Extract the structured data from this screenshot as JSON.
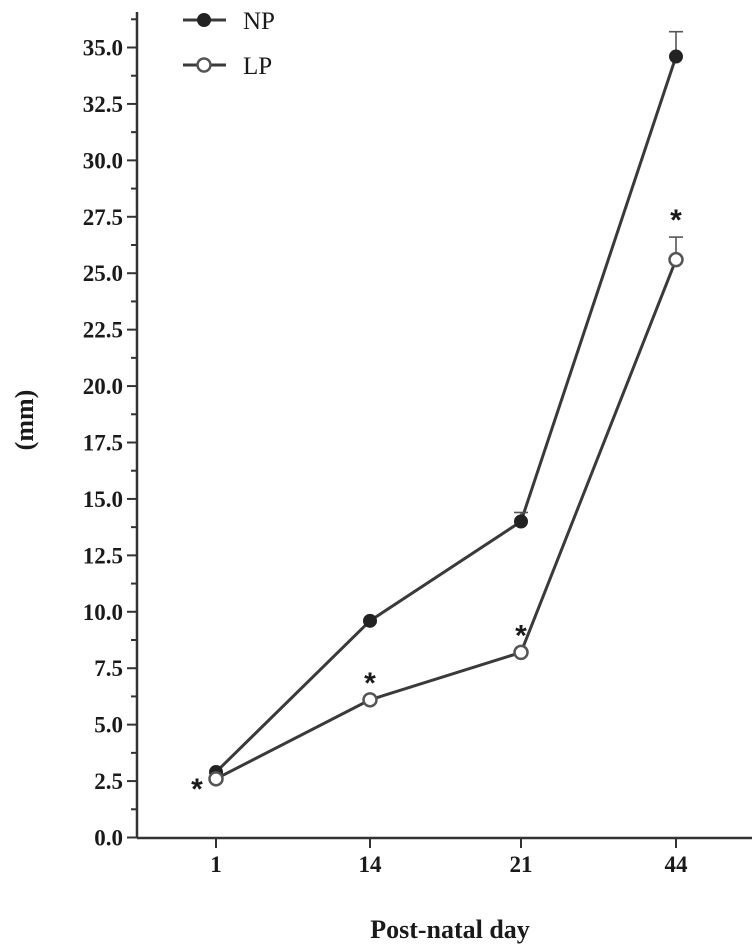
{
  "chart_data": {
    "type": "line",
    "xlabel": "Post-natal day",
    "ylabel": "(mm)",
    "categories": [
      "1",
      "14",
      "21",
      "44"
    ],
    "ylim": [
      0,
      36
    ],
    "yticks": [
      "0.0",
      "2.5",
      "5.0",
      "7.5",
      "10.0",
      "12.5",
      "15.0",
      "17.5",
      "20.0",
      "22.5",
      "25.0",
      "27.5",
      "30.0",
      "32.5",
      "35.0"
    ],
    "ytick_values": [
      0,
      2.5,
      5,
      7.5,
      10,
      12.5,
      15,
      17.5,
      20,
      22.5,
      25,
      27.5,
      30,
      32.5,
      35
    ],
    "legend_position": "top-left",
    "grid": false,
    "series": [
      {
        "name": "NP",
        "marker": "filled-circle",
        "values": [
          2.9,
          9.6,
          14.0,
          34.6
        ],
        "error": [
          0.0,
          0.0,
          0.4,
          1.1
        ],
        "significant": [
          false,
          false,
          false,
          false
        ]
      },
      {
        "name": "LP",
        "marker": "open-circle",
        "values": [
          2.6,
          6.1,
          8.2,
          25.6
        ],
        "error": [
          0.0,
          0.0,
          0.0,
          1.0
        ],
        "significant": [
          true,
          true,
          true,
          true
        ]
      }
    ],
    "significance_marker": "*"
  }
}
